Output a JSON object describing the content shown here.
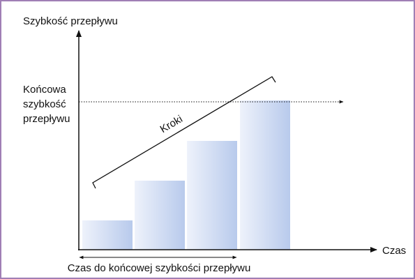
{
  "y_axis_label": "Szybkość przepływu",
  "x_axis_label": "Czas",
  "final_flow_label": [
    "Końcowa",
    "szybkość",
    "przepływu"
  ],
  "steps_label": "Kroki",
  "time_to_final_label": "Czas do końcowej szybkości przepływu"
}
